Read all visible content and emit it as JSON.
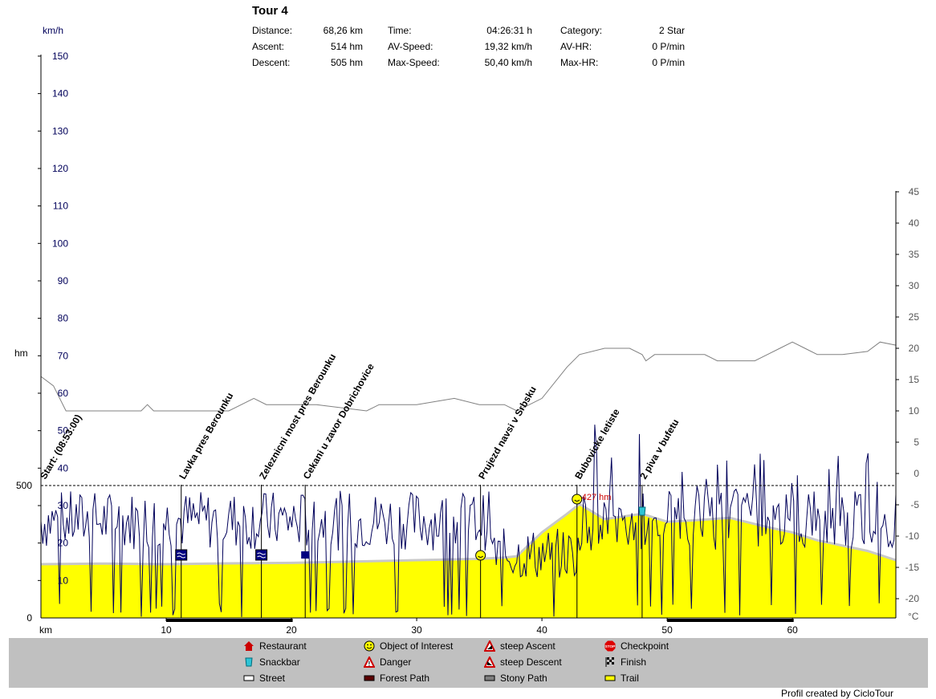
{
  "header": {
    "title": "Tour 4",
    "stats": [
      {
        "label": "Distance:",
        "value": "68,26 km"
      },
      {
        "label": "Ascent:",
        "value": "514 hm"
      },
      {
        "label": "Descent:",
        "value": "505 hm"
      },
      {
        "label": "Time:",
        "value": "04:26:31 h"
      },
      {
        "label": "AV-Speed:",
        "value": "19,32 km/h"
      },
      {
        "label": "Max-Speed:",
        "value": "50,40 km/h"
      },
      {
        "label": "Category:",
        "value": "2 Star"
      },
      {
        "label": "AV-HR:",
        "value": "0 P/min"
      },
      {
        "label": "Max-HR:",
        "value": "0 P/min"
      }
    ]
  },
  "legend": {
    "items": [
      {
        "label": "Restaurant",
        "icon": "restaurant-icon"
      },
      {
        "label": "Snackbar",
        "icon": "snackbar-icon"
      },
      {
        "label": "Street",
        "icon": "street-swatch"
      },
      {
        "label": "Object of Interest",
        "icon": "smiley-icon"
      },
      {
        "label": "Danger",
        "icon": "danger-icon"
      },
      {
        "label": "Forest Path",
        "icon": "forest-path-swatch"
      },
      {
        "label": "steep Ascent",
        "icon": "steep-ascent-icon"
      },
      {
        "label": "steep Descent",
        "icon": "steep-descent-icon"
      },
      {
        "label": "Stony Path",
        "icon": "stony-path-swatch"
      },
      {
        "label": "Checkpoint",
        "icon": "stop-icon"
      },
      {
        "label": "Finish",
        "icon": "finish-flag-icon"
      },
      {
        "label": "Trail",
        "icon": "trail-swatch"
      }
    ]
  },
  "credit": "Profil created by CicloTour",
  "chart_data": {
    "type": "area",
    "x_unit": "km",
    "x_ticks": [
      10,
      20,
      30,
      40,
      50,
      60
    ],
    "xlim": [
      0,
      68.26
    ],
    "speed_axis": {
      "unit": "km/h",
      "ticks": [
        10,
        20,
        30,
        40,
        50,
        60,
        70,
        80,
        90,
        100,
        110,
        120,
        130,
        140,
        150
      ],
      "ylim": [
        0,
        150
      ]
    },
    "elevation_axis": {
      "unit": "hm",
      "ticks": [
        0,
        500
      ],
      "reference_line": 500
    },
    "temperature_axis": {
      "unit": "°C",
      "ticks": [
        -20,
        -15,
        -10,
        -5,
        0,
        5,
        10,
        15,
        20,
        25,
        30,
        35,
        40,
        45
      ],
      "ylim": [
        -22,
        45
      ]
    },
    "elevation_profile": {
      "x": [
        0,
        5,
        10,
        15,
        20,
        25,
        30,
        35,
        37,
        38,
        40,
        42,
        43,
        45,
        48,
        50,
        52,
        55,
        58,
        60,
        62,
        64,
        66,
        68.26
      ],
      "y": [
        200,
        202,
        200,
        203,
        205,
        210,
        215,
        220,
        225,
        230,
        320,
        390,
        427,
        370,
        390,
        360,
        365,
        375,
        340,
        320,
        290,
        270,
        250,
        215
      ]
    },
    "temperature": {
      "x": [
        0,
        1,
        2,
        5,
        8,
        8.5,
        9,
        15,
        17,
        18,
        21,
        22,
        26,
        27,
        30,
        33,
        35,
        37,
        38,
        40,
        42,
        43,
        45,
        47,
        48,
        48.3,
        49,
        52,
        53,
        54,
        57,
        58,
        59,
        60,
        61,
        62,
        64,
        66,
        67,
        68.26
      ],
      "y": [
        15.5,
        14,
        10,
        10,
        10,
        11,
        10,
        10,
        12,
        11,
        11,
        11,
        10,
        11,
        11,
        12,
        11,
        11,
        10,
        12,
        17,
        19,
        20,
        20,
        19,
        18,
        19,
        19,
        19,
        18,
        18,
        19,
        20,
        21,
        20,
        19,
        19,
        19.5,
        21,
        20.5
      ]
    },
    "waypoints": [
      {
        "x": 0.1,
        "label": "Start: (08:53:00)"
      },
      {
        "x": 11.2,
        "label": "Lavka pres Berounku",
        "icon": "bridge"
      },
      {
        "x": 17.6,
        "label": "Zeleznicni most pres Berounku",
        "icon": "bridge"
      },
      {
        "x": 21.1,
        "label": "Cekani u zavor Dobrichovice",
        "icon": "crossing"
      },
      {
        "x": 35.1,
        "label": "Prujezd navsi v Srbsku",
        "icon": "smiley"
      },
      {
        "x": 42.8,
        "label": "Bubovicke letiste",
        "icon": "smiley"
      },
      {
        "x": 48.0,
        "label": "2 piva v bufetu",
        "icon": "snackbar"
      }
    ],
    "max_elevation_label": "427 hm",
    "surface_bar": [
      {
        "from": 10.0,
        "to": 20.1,
        "type": "Forest Path"
      },
      {
        "from": 50.0,
        "to": 60.1,
        "type": "Forest Path"
      }
    ]
  }
}
